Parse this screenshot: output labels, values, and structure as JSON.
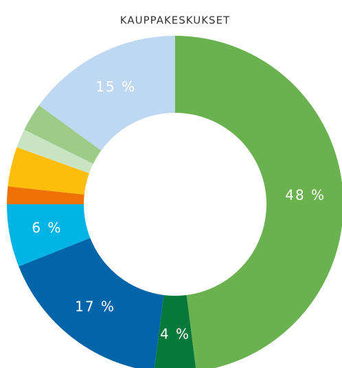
{
  "chart_data": {
    "type": "donut",
    "title": "KAUPPAKESKUKSET",
    "values": [
      48,
      4,
      17,
      6,
      1.7,
      3.8,
      1.8,
      2.7,
      15
    ],
    "value_labels": [
      "48 %",
      "4 %",
      "17 %",
      "6 %",
      null,
      null,
      null,
      null,
      "15 %"
    ],
    "colors": [
      "#6ab24f",
      "#07793a",
      "#0365a9",
      "#00b5e6",
      "#ee7205",
      "#fdbd0b",
      "#c9e4c0",
      "#9dcc88",
      "#bed8f2"
    ]
  }
}
